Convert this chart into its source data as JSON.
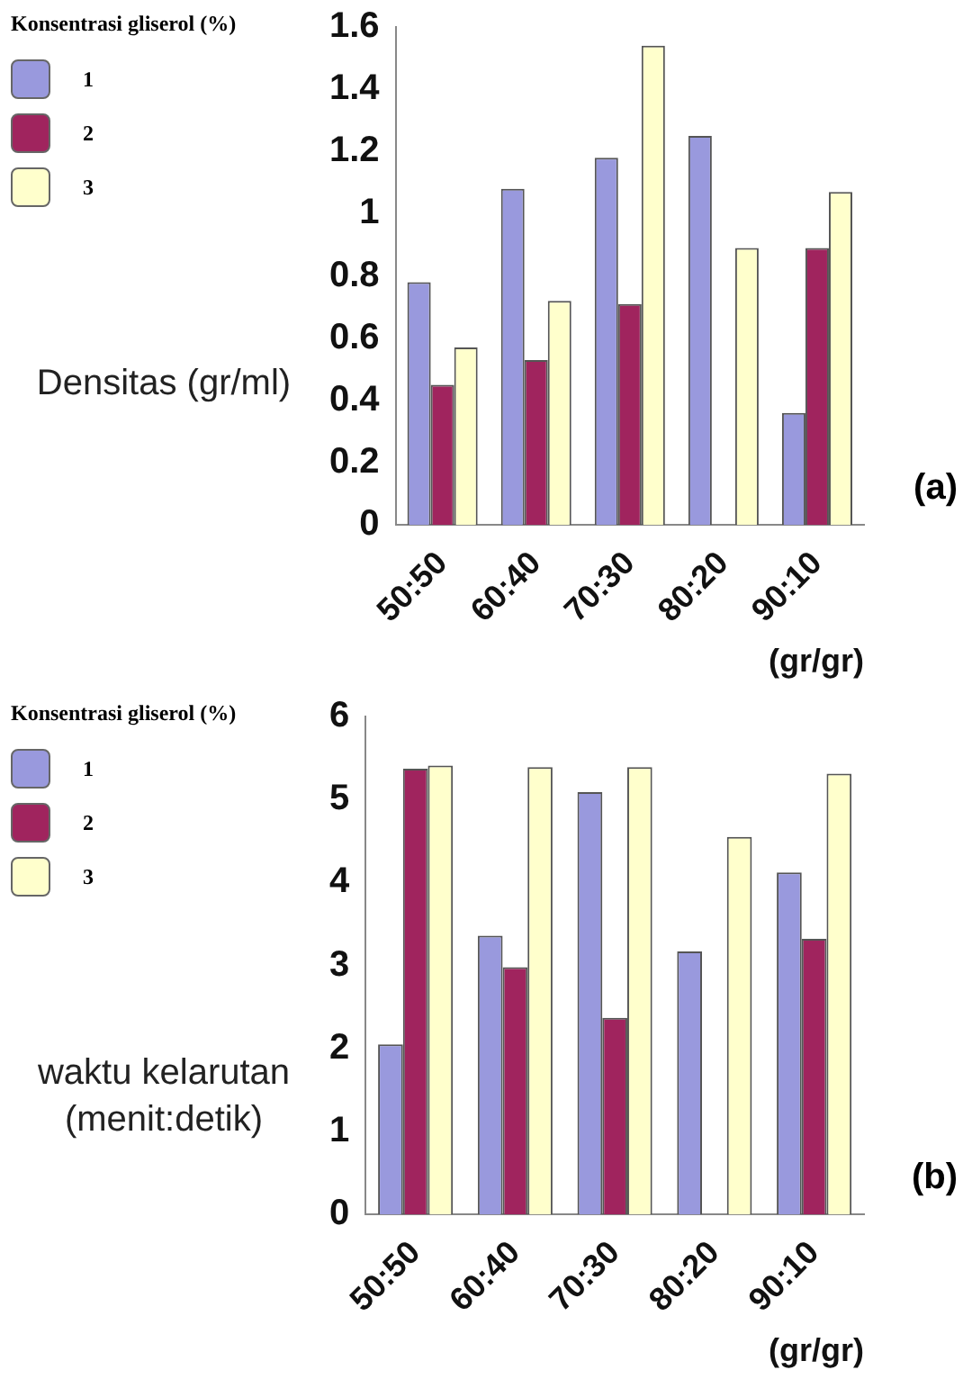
{
  "chart_data": [
    {
      "type": "bar",
      "legend_title": "Konsentrasi gliserol (%)",
      "ylabel": "Densitas (gr/ml)",
      "xlabel": "(gr/gr)",
      "annotations": [
        "(a)"
      ],
      "categories": [
        "50:50",
        "60:40",
        "70:30",
        "80:20",
        "90:10"
      ],
      "series": [
        {
          "name": "1",
          "color": "#9999dd",
          "values": [
            0.78,
            1.08,
            1.18,
            1.25,
            0.36
          ]
        },
        {
          "name": "2",
          "color": "#a0245e",
          "values": [
            0.45,
            0.53,
            0.71,
            0,
            0.89
          ]
        },
        {
          "name": "3",
          "color": "#ffffcc",
          "values": [
            0.57,
            0.72,
            1.54,
            0.89,
            1.07
          ]
        }
      ],
      "ylim": [
        0,
        1.6
      ],
      "yticks": [
        0,
        0.2,
        0.4,
        0.6,
        0.8,
        1,
        1.2,
        1.4,
        1.6
      ],
      "grid": false,
      "legend": "left"
    },
    {
      "type": "bar",
      "legend_title": "Konsentrasi gliserol (%)",
      "ylabel": "waktu kelarutan (menit:detik)",
      "xlabel": "(gr/gr)",
      "annotations": [
        "(b)"
      ],
      "categories": [
        "50:50",
        "60:40",
        "70:30",
        "80:20",
        "90:10"
      ],
      "series": [
        {
          "name": "1",
          "color": "#9999dd",
          "values": [
            2.05,
            3.36,
            5.09,
            3.17,
            4.12
          ]
        },
        {
          "name": "2",
          "color": "#a0245e",
          "values": [
            5.37,
            2.98,
            2.37,
            0,
            3.32
          ]
        },
        {
          "name": "3",
          "color": "#ffffcc",
          "values": [
            5.41,
            5.39,
            5.39,
            4.55,
            5.31
          ]
        }
      ],
      "ylim": [
        0,
        6
      ],
      "yticks": [
        0,
        1,
        2,
        3,
        4,
        5,
        6
      ],
      "grid": false,
      "legend": "left"
    }
  ]
}
